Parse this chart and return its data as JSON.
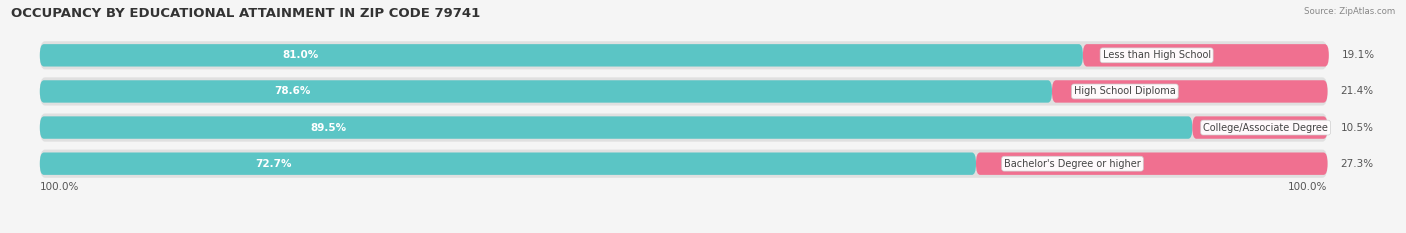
{
  "title": "OCCUPANCY BY EDUCATIONAL ATTAINMENT IN ZIP CODE 79741",
  "source": "Source: ZipAtlas.com",
  "categories": [
    "Less than High School",
    "High School Diploma",
    "College/Associate Degree",
    "Bachelor's Degree or higher"
  ],
  "owner_pct": [
    81.0,
    78.6,
    89.5,
    72.7
  ],
  "renter_pct": [
    19.1,
    21.4,
    10.5,
    27.3
  ],
  "owner_color": "#5bc5c5",
  "renter_color": "#f07090",
  "pill_bg_color": "#e0e0e0",
  "axis_label": "100.0%",
  "title_fontsize": 9.5,
  "bar_label_fontsize": 7.5,
  "cat_label_fontsize": 7.0,
  "legend_fontsize": 7.5,
  "fig_width": 14.06,
  "fig_height": 2.33,
  "background_color": "#f5f5f5",
  "text_color": "#555555",
  "title_color": "#333333",
  "source_color": "#888888"
}
